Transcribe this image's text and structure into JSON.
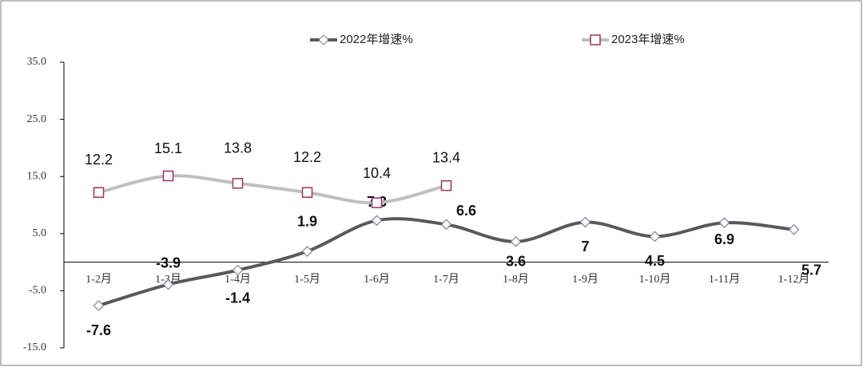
{
  "chart_data": {
    "type": "line",
    "categories": [
      "1-2月",
      "1-3月",
      "1-4月",
      "1-5月",
      "1-6月",
      "1-7月",
      "1-8月",
      "1-9月",
      "1-10月",
      "1-11月",
      "1-12月"
    ],
    "series": [
      {
        "name": "2022年增速%",
        "color": "#595959",
        "marker_color": "#8080a0",
        "marker": "diamond",
        "values": [
          -7.6,
          -3.9,
          -1.4,
          1.9,
          7.3,
          6.6,
          3.6,
          7.0,
          4.5,
          6.9,
          5.7
        ]
      },
      {
        "name": "2023年增速%",
        "color": "#bfbfbf",
        "marker_color": "#993366",
        "marker": "square",
        "values": [
          12.2,
          15.1,
          13.8,
          12.2,
          10.4,
          13.4,
          null,
          null,
          null,
          null,
          null
        ]
      }
    ],
    "ylim": [
      -15,
      35
    ],
    "yticks": [
      {
        "value": -15,
        "label": "-15.0"
      },
      {
        "value": -5,
        "label": "-5.0"
      },
      {
        "value": 5,
        "label": "5.0"
      },
      {
        "value": 15,
        "label": "15.0"
      },
      {
        "value": 25,
        "label": "25.0"
      },
      {
        "value": 35,
        "label": "35.0"
      }
    ]
  }
}
